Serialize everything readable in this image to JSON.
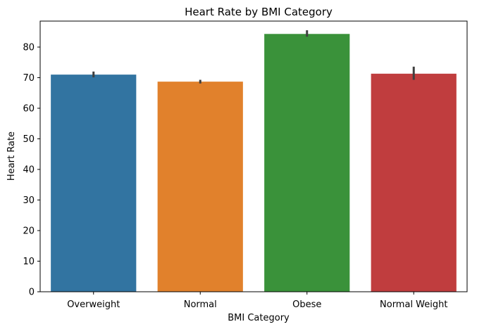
{
  "chart_data": {
    "type": "bar",
    "title": "Heart Rate by BMI Category",
    "xlabel": "BMI Category",
    "ylabel": "Heart Rate",
    "categories": [
      "Overweight",
      "Normal",
      "Obese",
      "Normal Weight"
    ],
    "values": [
      71.0,
      68.7,
      84.3,
      71.3
    ],
    "error_bars": [
      [
        70.1,
        72.0
      ],
      [
        68.1,
        69.3
      ],
      [
        83.4,
        85.5
      ],
      [
        69.3,
        73.6
      ]
    ],
    "colors": [
      "#3274a1",
      "#e1812c",
      "#3a923a",
      "#c03d3e"
    ],
    "error_color": "#3f3f3f",
    "ylim": [
      0,
      88.5
    ],
    "yticks": [
      0,
      10,
      20,
      30,
      40,
      50,
      60,
      70,
      80
    ],
    "grid": false,
    "legend": "none"
  }
}
